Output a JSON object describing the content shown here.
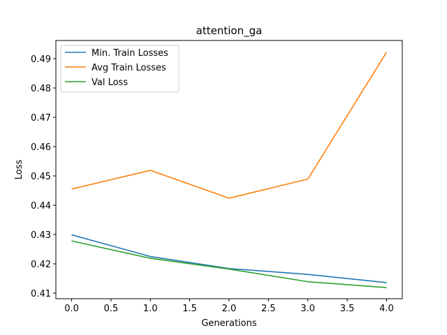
{
  "chart_data": {
    "type": "line",
    "title": "attention_ga",
    "xlabel": "Generations",
    "ylabel": "Loss",
    "x": [
      0,
      1,
      2,
      3,
      4
    ],
    "xticks": [
      0.0,
      0.5,
      1.0,
      1.5,
      2.0,
      2.5,
      3.0,
      3.5,
      4.0
    ],
    "xtick_labels": [
      "0.0",
      "0.5",
      "1.0",
      "1.5",
      "2.0",
      "2.5",
      "3.0",
      "3.5",
      "4.0"
    ],
    "yticks": [
      0.41,
      0.42,
      0.43,
      0.44,
      0.45,
      0.46,
      0.47,
      0.48,
      0.49
    ],
    "ytick_labels": [
      "0.41",
      "0.42",
      "0.43",
      "0.44",
      "0.45",
      "0.46",
      "0.47",
      "0.48",
      "0.49"
    ],
    "xlim": [
      -0.2,
      4.2
    ],
    "ylim": [
      0.4081,
      0.4962
    ],
    "grid": false,
    "legend_position": "upper-left",
    "series": [
      {
        "name": "Min. Train Losses",
        "color": "#1f77b4",
        "values": [
          0.4299,
          0.4225,
          0.4184,
          0.4164,
          0.4136
        ]
      },
      {
        "name": "Avg Train Losses",
        "color": "#ff7f0e",
        "values": [
          0.4455,
          0.4519,
          0.4424,
          0.4489,
          0.4922
        ]
      },
      {
        "name": "Val Loss",
        "color": "#2ca02c",
        "values": [
          0.4278,
          0.4219,
          0.4182,
          0.4139,
          0.4119
        ]
      }
    ]
  }
}
